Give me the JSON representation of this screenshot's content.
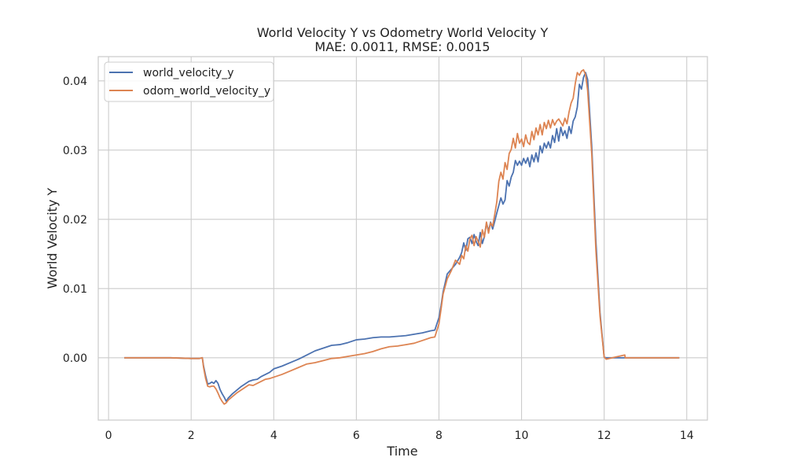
{
  "chart_data": {
    "type": "line",
    "title": "World Velocity Y vs Odometry World Velocity Y",
    "subtitle": "MAE: 0.0011, RMSE: 0.0015",
    "xlabel": "Time",
    "ylabel": "World Velocity Y",
    "xlim": [
      -0.25,
      14.5
    ],
    "ylim": [
      -0.009,
      0.0435
    ],
    "xticks": [
      0,
      2,
      4,
      6,
      8,
      10,
      12,
      14
    ],
    "xtick_labels": [
      "0",
      "2",
      "4",
      "6",
      "8",
      "10",
      "12",
      "14"
    ],
    "yticks": [
      0.0,
      0.01,
      0.02,
      0.03,
      0.04
    ],
    "ytick_labels": [
      "0.00",
      "0.01",
      "0.02",
      "0.03",
      "0.04"
    ],
    "grid": true,
    "legend_position": "top-left",
    "series": [
      {
        "name": "world_velocity_y",
        "color": "#4c72b0",
        "x": [
          0.38,
          1.0,
          1.5,
          2.0,
          2.2,
          2.27,
          2.3,
          2.35,
          2.4,
          2.45,
          2.5,
          2.55,
          2.6,
          2.65,
          2.7,
          2.75,
          2.8,
          2.85,
          2.9,
          3.0,
          3.1,
          3.2,
          3.3,
          3.4,
          3.5,
          3.6,
          3.7,
          3.8,
          3.9,
          4.0,
          4.2,
          4.4,
          4.6,
          4.8,
          5.0,
          5.2,
          5.4,
          5.6,
          5.8,
          6.0,
          6.2,
          6.4,
          6.6,
          6.8,
          7.0,
          7.2,
          7.4,
          7.6,
          7.8,
          7.9,
          8.0,
          8.05,
          8.1,
          8.2,
          8.3,
          8.4,
          8.5,
          8.55,
          8.6,
          8.65,
          8.7,
          8.75,
          8.8,
          8.85,
          8.9,
          8.95,
          9.0,
          9.05,
          9.1,
          9.15,
          9.2,
          9.25,
          9.3,
          9.35,
          9.4,
          9.45,
          9.5,
          9.55,
          9.6,
          9.65,
          9.7,
          9.75,
          9.8,
          9.85,
          9.9,
          9.95,
          10.0,
          10.05,
          10.1,
          10.15,
          10.2,
          10.25,
          10.3,
          10.35,
          10.4,
          10.45,
          10.5,
          10.55,
          10.6,
          10.65,
          10.7,
          10.75,
          10.8,
          10.85,
          10.9,
          10.95,
          11.0,
          11.05,
          11.1,
          11.15,
          11.2,
          11.25,
          11.3,
          11.35,
          11.4,
          11.45,
          11.5,
          11.55,
          11.6,
          11.7,
          11.8,
          11.9,
          12.0,
          12.05,
          12.2,
          12.5,
          13.0,
          13.5,
          13.82
        ],
        "y": [
          0.0,
          0.0,
          0.0,
          -0.0001,
          -0.0001,
          0.0,
          -0.0012,
          -0.0026,
          -0.0038,
          -0.0037,
          -0.0035,
          -0.0037,
          -0.0033,
          -0.0037,
          -0.0046,
          -0.0052,
          -0.0057,
          -0.0063,
          -0.0058,
          -0.0052,
          -0.0047,
          -0.0042,
          -0.0038,
          -0.0034,
          -0.0032,
          -0.0031,
          -0.0027,
          -0.0024,
          -0.0021,
          -0.0016,
          -0.0012,
          -0.0007,
          -0.0002,
          0.0004,
          0.001,
          0.0014,
          0.0018,
          0.0019,
          0.0022,
          0.0026,
          0.0027,
          0.0029,
          0.003,
          0.003,
          0.0031,
          0.0032,
          0.0034,
          0.0036,
          0.0039,
          0.004,
          0.0058,
          0.0075,
          0.0095,
          0.0121,
          0.0128,
          0.0135,
          0.0145,
          0.0152,
          0.0166,
          0.0155,
          0.0172,
          0.0174,
          0.0165,
          0.0178,
          0.0168,
          0.0162,
          0.0181,
          0.0165,
          0.0175,
          0.0195,
          0.0183,
          0.0196,
          0.0186,
          0.0197,
          0.0209,
          0.022,
          0.0231,
          0.0222,
          0.0228,
          0.0256,
          0.0248,
          0.0261,
          0.0268,
          0.0285,
          0.0278,
          0.0284,
          0.0278,
          0.0288,
          0.0281,
          0.0289,
          0.0276,
          0.0293,
          0.0283,
          0.0296,
          0.0283,
          0.0306,
          0.0296,
          0.031,
          0.0303,
          0.0312,
          0.0303,
          0.0321,
          0.0311,
          0.0331,
          0.0313,
          0.0333,
          0.0321,
          0.0328,
          0.0317,
          0.0334,
          0.0324,
          0.0342,
          0.0348,
          0.0362,
          0.0395,
          0.0388,
          0.0405,
          0.0412,
          0.0402,
          0.0305,
          0.0168,
          0.0065,
          0.0001,
          0.0,
          0.0,
          0.0,
          0.0,
          0.0,
          0.0
        ]
      },
      {
        "name": "odom_world_velocity_y",
        "color": "#dd8452",
        "x": [
          0.38,
          1.0,
          1.5,
          2.0,
          2.2,
          2.27,
          2.3,
          2.35,
          2.4,
          2.45,
          2.5,
          2.55,
          2.6,
          2.65,
          2.7,
          2.75,
          2.8,
          2.85,
          2.9,
          3.0,
          3.1,
          3.2,
          3.3,
          3.4,
          3.5,
          3.6,
          3.7,
          3.8,
          3.9,
          4.0,
          4.2,
          4.4,
          4.6,
          4.8,
          5.0,
          5.2,
          5.4,
          5.6,
          5.8,
          6.0,
          6.2,
          6.4,
          6.6,
          6.8,
          7.0,
          7.2,
          7.4,
          7.6,
          7.8,
          7.9,
          8.0,
          8.05,
          8.1,
          8.2,
          8.3,
          8.4,
          8.5,
          8.55,
          8.6,
          8.65,
          8.7,
          8.75,
          8.8,
          8.85,
          8.9,
          8.95,
          9.0,
          9.05,
          9.1,
          9.15,
          9.2,
          9.25,
          9.3,
          9.35,
          9.4,
          9.45,
          9.5,
          9.55,
          9.6,
          9.65,
          9.7,
          9.75,
          9.8,
          9.85,
          9.9,
          9.95,
          10.0,
          10.05,
          10.1,
          10.15,
          10.2,
          10.25,
          10.3,
          10.35,
          10.4,
          10.45,
          10.5,
          10.55,
          10.6,
          10.65,
          10.7,
          10.75,
          10.8,
          10.85,
          10.9,
          10.95,
          11.0,
          11.05,
          11.1,
          11.15,
          11.2,
          11.25,
          11.3,
          11.35,
          11.4,
          11.45,
          11.5,
          11.55,
          11.6,
          11.7,
          11.8,
          11.9,
          12.0,
          12.05,
          12.2,
          12.5,
          12.51,
          13.0,
          13.5,
          13.82
        ],
        "y": [
          0.0,
          0.0,
          0.0,
          -0.0001,
          -0.0001,
          0.0,
          -0.0014,
          -0.003,
          -0.0041,
          -0.0042,
          -0.0041,
          -0.0041,
          -0.0045,
          -0.0051,
          -0.0058,
          -0.0063,
          -0.0067,
          -0.0065,
          -0.0061,
          -0.0056,
          -0.0051,
          -0.0047,
          -0.0043,
          -0.0039,
          -0.004,
          -0.0037,
          -0.0034,
          -0.0031,
          -0.003,
          -0.0028,
          -0.0024,
          -0.0019,
          -0.0014,
          -0.0009,
          -0.0007,
          -0.0004,
          -0.0001,
          0.0,
          0.0002,
          0.0004,
          0.0006,
          0.0009,
          0.0013,
          0.0016,
          0.0017,
          0.0019,
          0.0021,
          0.0025,
          0.0029,
          0.003,
          0.0049,
          0.007,
          0.0092,
          0.0114,
          0.0126,
          0.0141,
          0.0135,
          0.0148,
          0.0143,
          0.0162,
          0.0154,
          0.0172,
          0.0177,
          0.0162,
          0.0175,
          0.0168,
          0.016,
          0.0185,
          0.0174,
          0.0196,
          0.018,
          0.0195,
          0.019,
          0.0207,
          0.0225,
          0.0255,
          0.0268,
          0.0258,
          0.0282,
          0.0272,
          0.0295,
          0.0301,
          0.0317,
          0.0303,
          0.0324,
          0.031,
          0.0316,
          0.0305,
          0.0322,
          0.0311,
          0.0308,
          0.0327,
          0.0315,
          0.0332,
          0.0322,
          0.0337,
          0.0322,
          0.034,
          0.0331,
          0.0343,
          0.0332,
          0.0344,
          0.0336,
          0.0342,
          0.0345,
          0.034,
          0.0335,
          0.0346,
          0.0338,
          0.0355,
          0.0368,
          0.0375,
          0.0396,
          0.0412,
          0.0408,
          0.0414,
          0.0416,
          0.0409,
          0.0386,
          0.0294,
          0.0155,
          0.006,
          0.0001,
          -0.0002,
          0.0,
          0.0004,
          0.0,
          0.0,
          0.0,
          0.0
        ]
      }
    ]
  }
}
